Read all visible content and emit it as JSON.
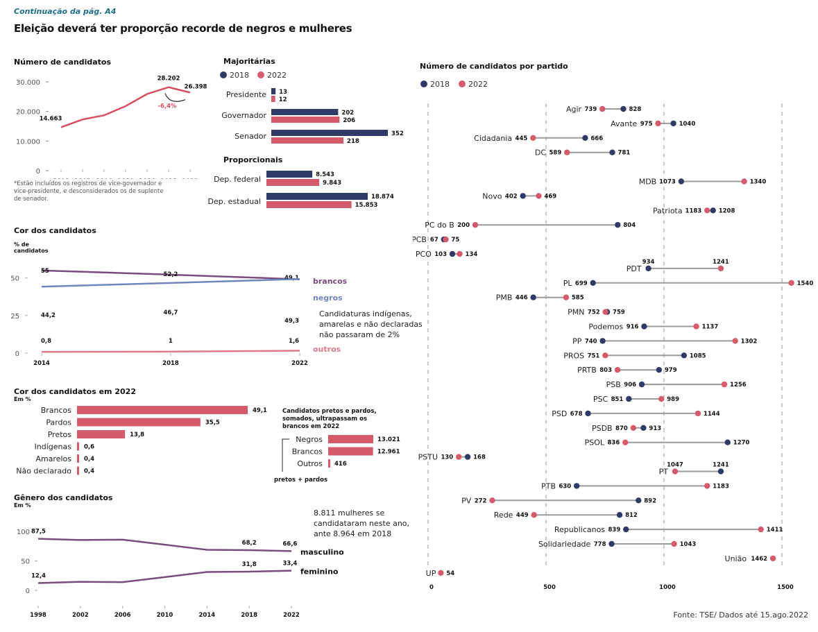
{
  "header": {
    "kicker": "Continuação da pág. A4",
    "title": "Eleição deverá ter proporção recorde de negros e mulheres"
  },
  "colors": {
    "y2018": "#2f3a66",
    "y2022": "#d45a6c",
    "brancos": "#7a4a80",
    "negros": "#6f86bd",
    "outros": "#e07a88",
    "gender": "#7a4a80",
    "total_line": "#d94d63",
    "connector": "#9a9a9a"
  },
  "source": "Fonte: TSE/ Dados até 15.ago.2022",
  "chart_data": [
    {
      "id": "numero-candidatos",
      "type": "line",
      "title": "Número de candidatos",
      "x": [
        "1998",
        "2002",
        "2006",
        "2010",
        "2014",
        "2018",
        "2022"
      ],
      "values": [
        14663,
        17300,
        18700,
        21800,
        25900,
        28202,
        26398
      ],
      "ylim": [
        0,
        30000
      ],
      "yticks": [
        "0",
        "10.000",
        "20.000",
        "30.000"
      ],
      "ytick_values": [
        0,
        10000,
        20000,
        30000
      ],
      "data_labels": [
        {
          "index": 0,
          "text": "14.663"
        },
        {
          "index": 5,
          "text": "28.202"
        },
        {
          "index": 6,
          "text": "26.398"
        }
      ],
      "annotation": "-6,4%",
      "footnote": "*Estão incluídos os registros de vice-governador e vice-presidente, e desconsiderados os de suplente de senador."
    },
    {
      "id": "majoritarias",
      "type": "bar",
      "title": "Majoritárias",
      "legend": [
        "2018",
        "2022"
      ],
      "categories": [
        "Presidente",
        "Governador",
        "Senador"
      ],
      "series": [
        {
          "name": "2018",
          "values": [
            13,
            202,
            352
          ],
          "labels": [
            "13",
            "202",
            "352"
          ]
        },
        {
          "name": "2022",
          "values": [
            12,
            206,
            218
          ],
          "labels": [
            "12",
            "206",
            "218"
          ]
        }
      ],
      "xlim": [
        0,
        352
      ]
    },
    {
      "id": "proporcionais",
      "type": "bar",
      "title": "Proporcionais",
      "categories": [
        "Dep. federal",
        "Dep. estadual"
      ],
      "series": [
        {
          "name": "2018",
          "values": [
            8543,
            18874
          ],
          "labels": [
            "8.543",
            "18.874"
          ]
        },
        {
          "name": "2022",
          "values": [
            9843,
            15853
          ],
          "labels": [
            "9.843",
            "15.853"
          ]
        }
      ],
      "xlim": [
        0,
        18874
      ]
    },
    {
      "id": "cor-candidatos",
      "type": "line",
      "title": "Cor dos candidatos",
      "ylabel": "% de candidatos",
      "x": [
        "2014",
        "2018",
        "2022"
      ],
      "ylim": [
        0,
        60
      ],
      "yticks": [
        "0",
        "25",
        "50"
      ],
      "ytick_values": [
        0,
        25,
        50
      ],
      "series": [
        {
          "name": "brancos",
          "values": [
            55,
            52.2,
            49.1
          ],
          "labels": [
            "55",
            "52,2",
            "49,1"
          ]
        },
        {
          "name": "negros",
          "values": [
            44.2,
            46.7,
            49.3
          ],
          "labels": [
            "44,2",
            "46,7",
            "49,3"
          ]
        },
        {
          "name": "outros",
          "values": [
            0.8,
            1,
            1.6
          ],
          "labels": [
            "0,8",
            "1",
            "1,6"
          ]
        }
      ],
      "annotation": "Candidaturas indígenas, amarelas e não declaradas não passaram de 2%"
    },
    {
      "id": "cor-2022",
      "type": "bar",
      "title": "Cor dos candidatos em 2022",
      "subtitle": "Em %",
      "categories": [
        "Brancos",
        "Pardos",
        "Pretos",
        "Indígenas",
        "Amarelos",
        "Não declarado"
      ],
      "values": [
        49.1,
        35.5,
        13.8,
        0.6,
        0.4,
        0.4
      ],
      "labels": [
        "49,1",
        "35,5",
        "13,8",
        "0,6",
        "0,4",
        "0,4"
      ],
      "xlim": [
        0,
        49.1
      ]
    },
    {
      "id": "pretos-pardos",
      "type": "bar",
      "title": "Candidatos pretos e pardos, somados, ultrapassam os brancos em 2022",
      "categories": [
        "Negros",
        "Brancos",
        "Outros"
      ],
      "values": [
        13021,
        12961,
        416
      ],
      "labels": [
        "13.021",
        "12.961",
        "416"
      ],
      "bracket_label": "pretos + pardos",
      "xlim": [
        0,
        13021
      ]
    },
    {
      "id": "genero",
      "type": "line",
      "title": "Gênero dos candidatos",
      "subtitle": "Em %",
      "x": [
        "1998",
        "2002",
        "2006",
        "2010",
        "2014",
        "2018",
        "2022"
      ],
      "ylim": [
        0,
        100
      ],
      "yticks": [
        "0",
        "50",
        "100"
      ],
      "ytick_values": [
        0,
        50,
        100
      ],
      "series": [
        {
          "name": "masculino",
          "values": [
            87.5,
            85.5,
            86,
            77.5,
            68.8,
            68.2,
            66.6
          ],
          "labels": [
            {
              "index": 0,
              "text": "87,5"
            },
            {
              "index": 5,
              "text": "68,2"
            },
            {
              "index": 6,
              "text": "66,6"
            }
          ]
        },
        {
          "name": "feminino",
          "values": [
            12.4,
            14.5,
            14,
            22.5,
            31.2,
            31.8,
            33.4
          ],
          "labels": [
            {
              "index": 0,
              "text": "12,4"
            },
            {
              "index": 5,
              "text": "31,8"
            },
            {
              "index": 6,
              "text": "33,4"
            }
          ]
        }
      ],
      "annotation": "8.811 mulheres se candidataram neste ano, ante 8.964 em 2018"
    },
    {
      "id": "por-partido",
      "type": "scatter",
      "subtype": "dumbbell",
      "title": "Número de candidatos por partido",
      "legend": [
        "2018",
        "2022"
      ],
      "xlim": [
        0,
        1500
      ],
      "xticks": [
        "0",
        "500",
        "1000",
        "1500"
      ],
      "xtick_values": [
        0,
        500,
        1000,
        1500
      ],
      "parties": [
        {
          "name": "Agir",
          "y2018": 828,
          "y2022": 739
        },
        {
          "name": "Avante",
          "y2018": 1040,
          "y2022": 975
        },
        {
          "name": "Cidadania",
          "y2018": 666,
          "y2022": 445
        },
        {
          "name": "DC",
          "y2018": 781,
          "y2022": 589
        },
        {
          "name": "",
          "y2018": null,
          "y2022": null
        },
        {
          "name": "MDB",
          "y2018": 1073,
          "y2022": 1340
        },
        {
          "name": "Novo",
          "y2018": 402,
          "y2022": 469
        },
        {
          "name": "Patriota",
          "y2018": 1208,
          "y2022": 1183
        },
        {
          "name": "PC do B",
          "y2018": 804,
          "y2022": 200
        },
        {
          "name": "PCB",
          "y2018": 67,
          "y2022": 75
        },
        {
          "name": "PCO",
          "y2018": 103,
          "y2022": 134
        },
        {
          "name": "PDT",
          "y2018": 934,
          "y2022": 1241,
          "labels_above": true
        },
        {
          "name": "PL",
          "y2018": 699,
          "y2022": 1540
        },
        {
          "name": "PMB",
          "y2018": 446,
          "y2022": 585
        },
        {
          "name": "PMN",
          "y2018": 759,
          "y2022": 752
        },
        {
          "name": "Podemos",
          "y2018": 916,
          "y2022": 1137
        },
        {
          "name": "PP",
          "y2018": 740,
          "y2022": 1302
        },
        {
          "name": "PROS",
          "y2018": 1085,
          "y2022": 751
        },
        {
          "name": "PRTB",
          "y2018": 979,
          "y2022": 803
        },
        {
          "name": "PSB",
          "y2018": 906,
          "y2022": 1256
        },
        {
          "name": "PSC",
          "y2018": 851,
          "y2022": 989
        },
        {
          "name": "PSD",
          "y2018": 678,
          "y2022": 1144
        },
        {
          "name": "PSDB",
          "y2018": 913,
          "y2022": 870
        },
        {
          "name": "PSOL",
          "y2018": 1270,
          "y2022": 836
        },
        {
          "name": "PSTU",
          "y2018": 168,
          "y2022": 130
        },
        {
          "name": "PT",
          "y2018": 1241,
          "y2022": 1047,
          "labels_above": true
        },
        {
          "name": "PTB",
          "y2018": 630,
          "y2022": 1183
        },
        {
          "name": "PV",
          "y2018": 892,
          "y2022": 272
        },
        {
          "name": "Rede",
          "y2018": 812,
          "y2022": 449
        },
        {
          "name": "Republicanos",
          "y2018": 839,
          "y2022": 1411
        },
        {
          "name": "Solidariedade",
          "y2018": 778,
          "y2022": 1043
        },
        {
          "name": "União",
          "y2018": null,
          "y2022": 1462
        },
        {
          "name": "UP",
          "y2018": null,
          "y2022": 54
        }
      ]
    }
  ]
}
